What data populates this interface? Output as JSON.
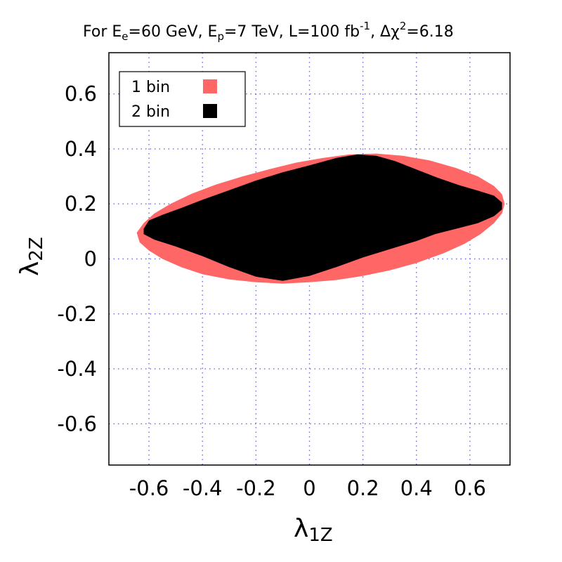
{
  "chart_data": {
    "type": "area",
    "title": {
      "prefix": "For E",
      "ee_sub": "e",
      "ee_rest": "=60 GeV, E",
      "ep_sub": "p",
      "ep_rest": "=7 TeV, L=100 fb",
      "lumi_sup": "-1",
      "lumi_rest": ", Δχ",
      "chi_sup": "2",
      "chi_rest": "=6.18"
    },
    "xlabel": {
      "main": "λ",
      "sub": "1Z"
    },
    "ylabel": {
      "main": "λ",
      "sub": "2Z"
    },
    "xlim": [
      -0.75,
      0.75
    ],
    "ylim": [
      -0.75,
      0.75
    ],
    "xticks": [
      {
        "value": -0.6,
        "label": "-0.6"
      },
      {
        "value": -0.4,
        "label": "-0.4"
      },
      {
        "value": -0.2,
        "label": "-0.2"
      },
      {
        "value": 0,
        "label": "0"
      },
      {
        "value": 0.2,
        "label": "0.2"
      },
      {
        "value": 0.4,
        "label": "0.4"
      },
      {
        "value": 0.6,
        "label": "0.6"
      }
    ],
    "yticks": [
      {
        "value": 0.6,
        "label": "0.6"
      },
      {
        "value": 0.4,
        "label": "0.4"
      },
      {
        "value": 0.2,
        "label": "0.2"
      },
      {
        "value": 0,
        "label": "0"
      },
      {
        "value": -0.2,
        "label": "-0.2"
      },
      {
        "value": -0.4,
        "label": "-0.4"
      },
      {
        "value": -0.6,
        "label": "-0.6"
      }
    ],
    "grid": true,
    "legend_position": "top-left",
    "series": [
      {
        "name": "1 bin",
        "color": "#ff6666",
        "points": [
          [
            -0.646,
            0.095
          ],
          [
            -0.62,
            0.13
          ],
          [
            -0.58,
            0.165
          ],
          [
            -0.52,
            0.2
          ],
          [
            -0.44,
            0.237
          ],
          [
            -0.35,
            0.27
          ],
          [
            -0.25,
            0.3
          ],
          [
            -0.15,
            0.326
          ],
          [
            -0.05,
            0.35
          ],
          [
            0.05,
            0.367
          ],
          [
            0.15,
            0.38
          ],
          [
            0.25,
            0.383
          ],
          [
            0.35,
            0.375
          ],
          [
            0.45,
            0.358
          ],
          [
            0.55,
            0.33
          ],
          [
            0.63,
            0.3
          ],
          [
            0.69,
            0.265
          ],
          [
            0.72,
            0.235
          ],
          [
            0.73,
            0.2
          ],
          [
            0.72,
            0.165
          ],
          [
            0.69,
            0.13
          ],
          [
            0.64,
            0.09
          ],
          [
            0.58,
            0.055
          ],
          [
            0.5,
            0.02
          ],
          [
            0.4,
            -0.015
          ],
          [
            0.3,
            -0.042
          ],
          [
            0.2,
            -0.062
          ],
          [
            0.1,
            -0.077
          ],
          [
            0.0,
            -0.085
          ],
          [
            -0.1,
            -0.09
          ],
          [
            -0.2,
            -0.085
          ],
          [
            -0.3,
            -0.075
          ],
          [
            -0.4,
            -0.056
          ],
          [
            -0.48,
            -0.03
          ],
          [
            -0.55,
            0.0
          ],
          [
            -0.6,
            0.03
          ],
          [
            -0.635,
            0.06
          ]
        ]
      },
      {
        "name": "2 bin",
        "color": "#000000",
        "points": [
          [
            -0.62,
            0.11
          ],
          [
            -0.6,
            0.14
          ],
          [
            -0.55,
            0.16
          ],
          [
            -0.48,
            0.185
          ],
          [
            -0.4,
            0.215
          ],
          [
            -0.3,
            0.25
          ],
          [
            -0.2,
            0.285
          ],
          [
            -0.1,
            0.315
          ],
          [
            0.0,
            0.34
          ],
          [
            0.1,
            0.367
          ],
          [
            0.18,
            0.38
          ],
          [
            0.25,
            0.375
          ],
          [
            0.32,
            0.356
          ],
          [
            0.4,
            0.325
          ],
          [
            0.48,
            0.295
          ],
          [
            0.56,
            0.268
          ],
          [
            0.63,
            0.248
          ],
          [
            0.69,
            0.23
          ],
          [
            0.72,
            0.205
          ],
          [
            0.72,
            0.18
          ],
          [
            0.69,
            0.155
          ],
          [
            0.63,
            0.13
          ],
          [
            0.55,
            0.11
          ],
          [
            0.47,
            0.09
          ],
          [
            0.4,
            0.065
          ],
          [
            0.3,
            0.035
          ],
          [
            0.2,
            0.005
          ],
          [
            0.1,
            -0.03
          ],
          [
            0.0,
            -0.062
          ],
          [
            -0.1,
            -0.08
          ],
          [
            -0.2,
            -0.065
          ],
          [
            -0.3,
            -0.03
          ],
          [
            -0.4,
            0.01
          ],
          [
            -0.5,
            0.045
          ],
          [
            -0.58,
            0.07
          ],
          [
            -0.62,
            0.09
          ]
        ]
      }
    ]
  }
}
